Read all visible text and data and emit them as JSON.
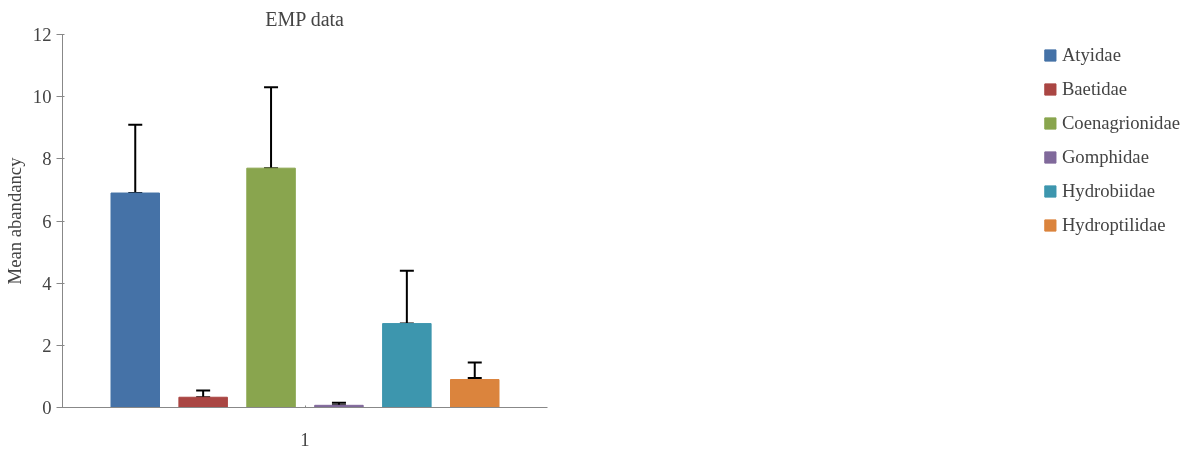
{
  "chart_data": {
    "type": "bar",
    "title": "EMP data",
    "ylabel": "Mean abandancy",
    "categories": [
      "1"
    ],
    "series": [
      {
        "name": "Atyidae",
        "color": "#4572a7",
        "values": [
          6.9
        ],
        "errors": [
          [
            6.9,
            9.1
          ]
        ]
      },
      {
        "name": "Baetidae",
        "color": "#aa4643",
        "values": [
          0.33
        ],
        "errors": [
          [
            0.33,
            0.55
          ]
        ]
      },
      {
        "name": "Coenagrionidae",
        "color": "#89a54e",
        "values": [
          7.7
        ],
        "errors": [
          [
            7.7,
            10.3
          ]
        ]
      },
      {
        "name": "Gomphidae",
        "color": "#80699b",
        "values": [
          0.07
        ],
        "errors": [
          [
            0.07,
            0.15
          ]
        ]
      },
      {
        "name": "Hydrobiidae",
        "color": "#3d96ae",
        "values": [
          2.7
        ],
        "errors": [
          [
            2.7,
            4.4
          ]
        ]
      },
      {
        "name": "Hydroptilidae",
        "color": "#db843d",
        "values": [
          0.9
        ],
        "errors": [
          [
            0.95,
            1.45
          ]
        ]
      }
    ],
    "ylim": [
      0,
      12
    ],
    "yticks": [
      0,
      2,
      4,
      6,
      8,
      10,
      12
    ],
    "grid": false,
    "legend": "right"
  }
}
